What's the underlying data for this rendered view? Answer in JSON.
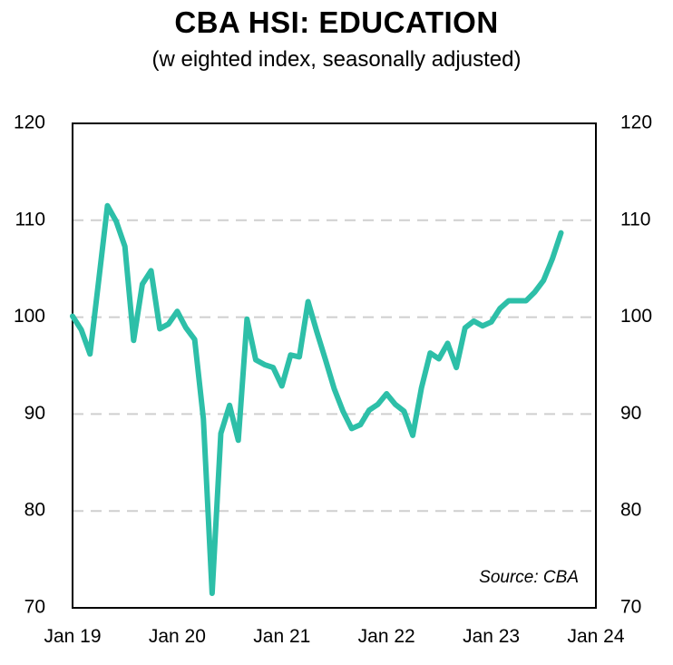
{
  "chart_data": {
    "type": "line",
    "title": "CBA HSI: EDUCATION",
    "subtitle": "(w eighted index, seasonally adjusted)",
    "source": "Source:  CBA",
    "line_color": "#2dbfa8",
    "grid": "horizontal dashed",
    "ylim": [
      70,
      120
    ],
    "yticks": [
      "120",
      "110",
      "100",
      "90",
      "80",
      "70"
    ],
    "yticks_right": [
      "120",
      "110",
      "100",
      "90",
      "80",
      "70"
    ],
    "xticks": [
      "Jan 19",
      "Jan 20",
      "Jan 21",
      "Jan 22",
      "Jan 23",
      "Jan 24"
    ],
    "x_start": "Jan 19",
    "x_end": "Jan 24",
    "series": [
      {
        "x": [
          "Jan 19",
          "Feb 19",
          "Mar 19",
          "Apr 19",
          "May 19",
          "Jun 19",
          "Jul 19",
          "Aug 19",
          "Sep 19",
          "Oct 19",
          "Nov 19",
          "Dec 19",
          "Jan 20",
          "Feb 20",
          "Mar 20",
          "Apr 20",
          "May 20",
          "Jun 20",
          "Jul 20",
          "Aug 20",
          "Sep 20",
          "Oct 20",
          "Nov 20",
          "Dec 20",
          "Jan 21",
          "Feb 21",
          "Mar 21",
          "Apr 21",
          "May 21",
          "Jun 21",
          "Jul 21",
          "Aug 21",
          "Sep 21",
          "Oct 21",
          "Nov 21",
          "Dec 21",
          "Jan 22",
          "Feb 22",
          "Mar 22",
          "Apr 22",
          "May 22",
          "Jun 22",
          "Jul 22",
          "Aug 22",
          "Sep 22",
          "Oct 22",
          "Nov 22",
          "Dec 22",
          "Jan 23",
          "Feb 23",
          "Mar 23",
          "Apr 23",
          "May 23",
          "Jun 23",
          "Jul 23",
          "Aug 23",
          "Sep 23"
        ],
        "values": [
          100.1,
          98.7,
          96.2,
          103.8,
          111.5,
          109.9,
          107.3,
          97.6,
          103.4,
          104.8,
          98.8,
          99.3,
          100.6,
          98.9,
          97.7,
          89.5,
          71.5,
          88.0,
          90.9,
          87.3,
          99.8,
          95.6,
          95.1,
          94.8,
          92.9,
          96.1,
          95.9,
          101.6,
          98.5,
          95.6,
          92.6,
          90.3,
          88.5,
          88.9,
          90.4,
          91.0,
          92.1,
          91.0,
          90.3,
          87.8,
          92.7,
          96.3,
          95.7,
          97.3,
          94.8,
          98.9,
          99.6,
          99.1,
          99.5,
          100.9,
          101.7,
          101.7,
          101.7,
          102.6,
          103.8,
          106.0,
          108.7
        ]
      }
    ]
  }
}
